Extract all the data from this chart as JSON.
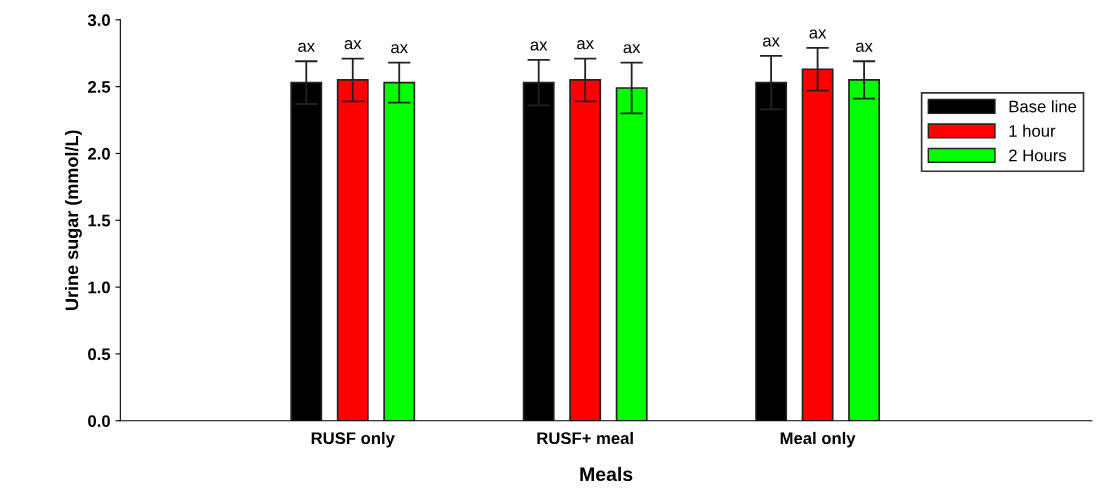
{
  "chart_data": {
    "type": "bar",
    "xlabel": "Meals",
    "ylabel": "Urine sugar (mmol/L)",
    "categories": [
      "RUSF only",
      "RUSF+ meal",
      "Meal only"
    ],
    "series": [
      {
        "name": "Base line",
        "color": "#000000",
        "values": [
          2.53,
          2.53,
          2.53
        ],
        "errors": [
          0.16,
          0.17,
          0.2
        ],
        "value_labels": [
          "ax",
          "ax",
          "ax"
        ]
      },
      {
        "name": "1 hour",
        "color": "#ff0000",
        "values": [
          2.55,
          2.55,
          2.63
        ],
        "errors": [
          0.16,
          0.16,
          0.16
        ],
        "value_labels": [
          "ax",
          "ax",
          "ax"
        ]
      },
      {
        "name": "2 Hours",
        "color": "#00ff00",
        "values": [
          2.53,
          2.49,
          2.55
        ],
        "errors": [
          0.15,
          0.19,
          0.14
        ],
        "value_labels": [
          "ax",
          "ax",
          "ax"
        ]
      }
    ],
    "ylim": [
      0,
      3.0
    ],
    "yticks": [
      {
        "value": 0,
        "label": "0.0"
      },
      {
        "value": 0.5,
        "label": "0.5"
      },
      {
        "value": 1.0,
        "label": "1.0"
      },
      {
        "value": 1.5,
        "label": "1.5"
      },
      {
        "value": 2.0,
        "label": "2.0"
      },
      {
        "value": 2.5,
        "label": "2.5"
      },
      {
        "value": 3.0,
        "label": "3.0"
      }
    ],
    "grid": false,
    "legend": "right"
  }
}
